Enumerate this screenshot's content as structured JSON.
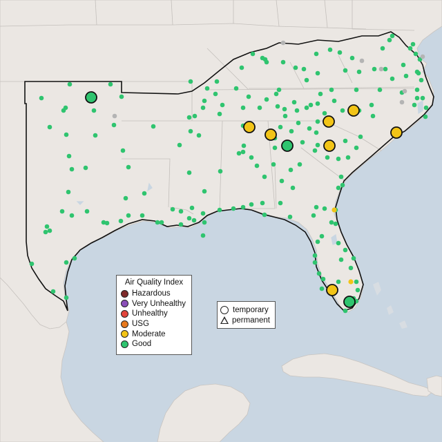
{
  "legend": {
    "title": "Air Quality Index",
    "items": [
      {
        "label": "Hazardous",
        "color": "#7e2a2a"
      },
      {
        "label": "Very Unhealthy",
        "color": "#8a4fb8"
      },
      {
        "label": "Unhealthy",
        "color": "#e2453c"
      },
      {
        "label": "USG",
        "color": "#e6781d"
      },
      {
        "label": "Moderate",
        "color": "#f2c417"
      },
      {
        "label": "Good",
        "color": "#2fc46f"
      }
    ]
  },
  "monitor_legend": {
    "temporary": "temporary",
    "permanent": "permanent"
  },
  "colors": {
    "ocean": "#c9d6e2",
    "land": "#ebe7e3",
    "good": "#2fc46f",
    "moderate": "#f2c417",
    "inactive": "#b4b4b4"
  }
}
